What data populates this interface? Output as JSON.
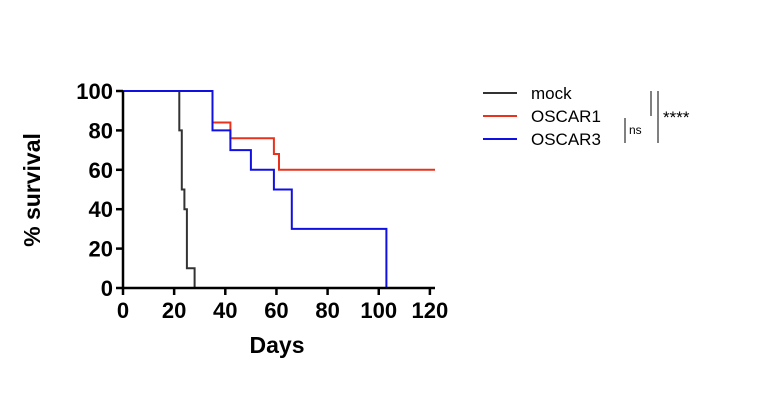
{
  "chart_data": {
    "type": "line",
    "subtype": "kaplan-meier step",
    "xlabel": "Days",
    "ylabel": "% survival",
    "xlim": [
      0,
      122
    ],
    "ylim": [
      0,
      100
    ],
    "xticks": [
      0,
      20,
      40,
      60,
      80,
      100,
      120
    ],
    "yticks": [
      0,
      20,
      40,
      60,
      80,
      100
    ],
    "grid": false,
    "legend_position": "right",
    "series": [
      {
        "name": "mock",
        "color": "#333333",
        "points": [
          [
            0,
            100
          ],
          [
            22,
            100
          ],
          [
            22,
            80
          ],
          [
            23,
            80
          ],
          [
            23,
            50
          ],
          [
            24,
            50
          ],
          [
            24,
            40
          ],
          [
            25,
            40
          ],
          [
            25,
            10
          ],
          [
            28,
            10
          ],
          [
            28,
            0
          ]
        ]
      },
      {
        "name": "OSCAR1",
        "color": "#e8321e",
        "points": [
          [
            0,
            100
          ],
          [
            35,
            100
          ],
          [
            35,
            84
          ],
          [
            42,
            84
          ],
          [
            42,
            76
          ],
          [
            59,
            76
          ],
          [
            59,
            68
          ],
          [
            61,
            68
          ],
          [
            61,
            60
          ],
          [
            122,
            60
          ]
        ]
      },
      {
        "name": "OSCAR3",
        "color": "#1010e0",
        "points": [
          [
            0,
            100
          ],
          [
            35,
            100
          ],
          [
            35,
            80
          ],
          [
            42,
            80
          ],
          [
            42,
            70
          ],
          [
            50,
            70
          ],
          [
            50,
            60
          ],
          [
            59,
            60
          ],
          [
            59,
            50
          ],
          [
            66,
            50
          ],
          [
            66,
            30
          ],
          [
            103,
            30
          ],
          [
            103,
            0
          ]
        ]
      }
    ],
    "annotations": {
      "ns": "ns",
      "sig": "****"
    }
  }
}
